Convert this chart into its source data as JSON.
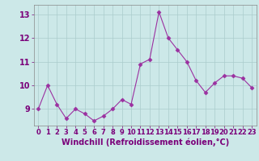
{
  "x": [
    0,
    1,
    2,
    3,
    4,
    5,
    6,
    7,
    8,
    9,
    10,
    11,
    12,
    13,
    14,
    15,
    16,
    17,
    18,
    19,
    20,
    21,
    22,
    23
  ],
  "y": [
    9.0,
    10.0,
    9.2,
    8.6,
    9.0,
    8.8,
    8.5,
    8.7,
    9.0,
    9.4,
    9.2,
    10.9,
    11.1,
    13.1,
    12.0,
    11.5,
    11.0,
    10.2,
    9.7,
    10.1,
    10.4,
    10.4,
    10.3,
    9.9
  ],
  "line_color": "#9b30a0",
  "marker": "D",
  "markersize": 2.5,
  "linewidth": 0.8,
  "background_color": "#cce8e8",
  "grid_color": "#aacccc",
  "xlabel": "Windchill (Refroidissement éolien,°C)",
  "xlabel_fontsize": 7,
  "xlabel_color": "#7a007a",
  "tick_color": "#7a007a",
  "ylim": [
    8.3,
    13.4
  ],
  "xlim": [
    -0.5,
    23.5
  ],
  "yticks": [
    9,
    10,
    11,
    12,
    13
  ],
  "xticks": [
    0,
    1,
    2,
    3,
    4,
    5,
    6,
    7,
    8,
    9,
    10,
    11,
    12,
    13,
    14,
    15,
    16,
    17,
    18,
    19,
    20,
    21,
    22,
    23
  ],
  "tick_fontsize": 6,
  "ytick_fontsize": 7
}
